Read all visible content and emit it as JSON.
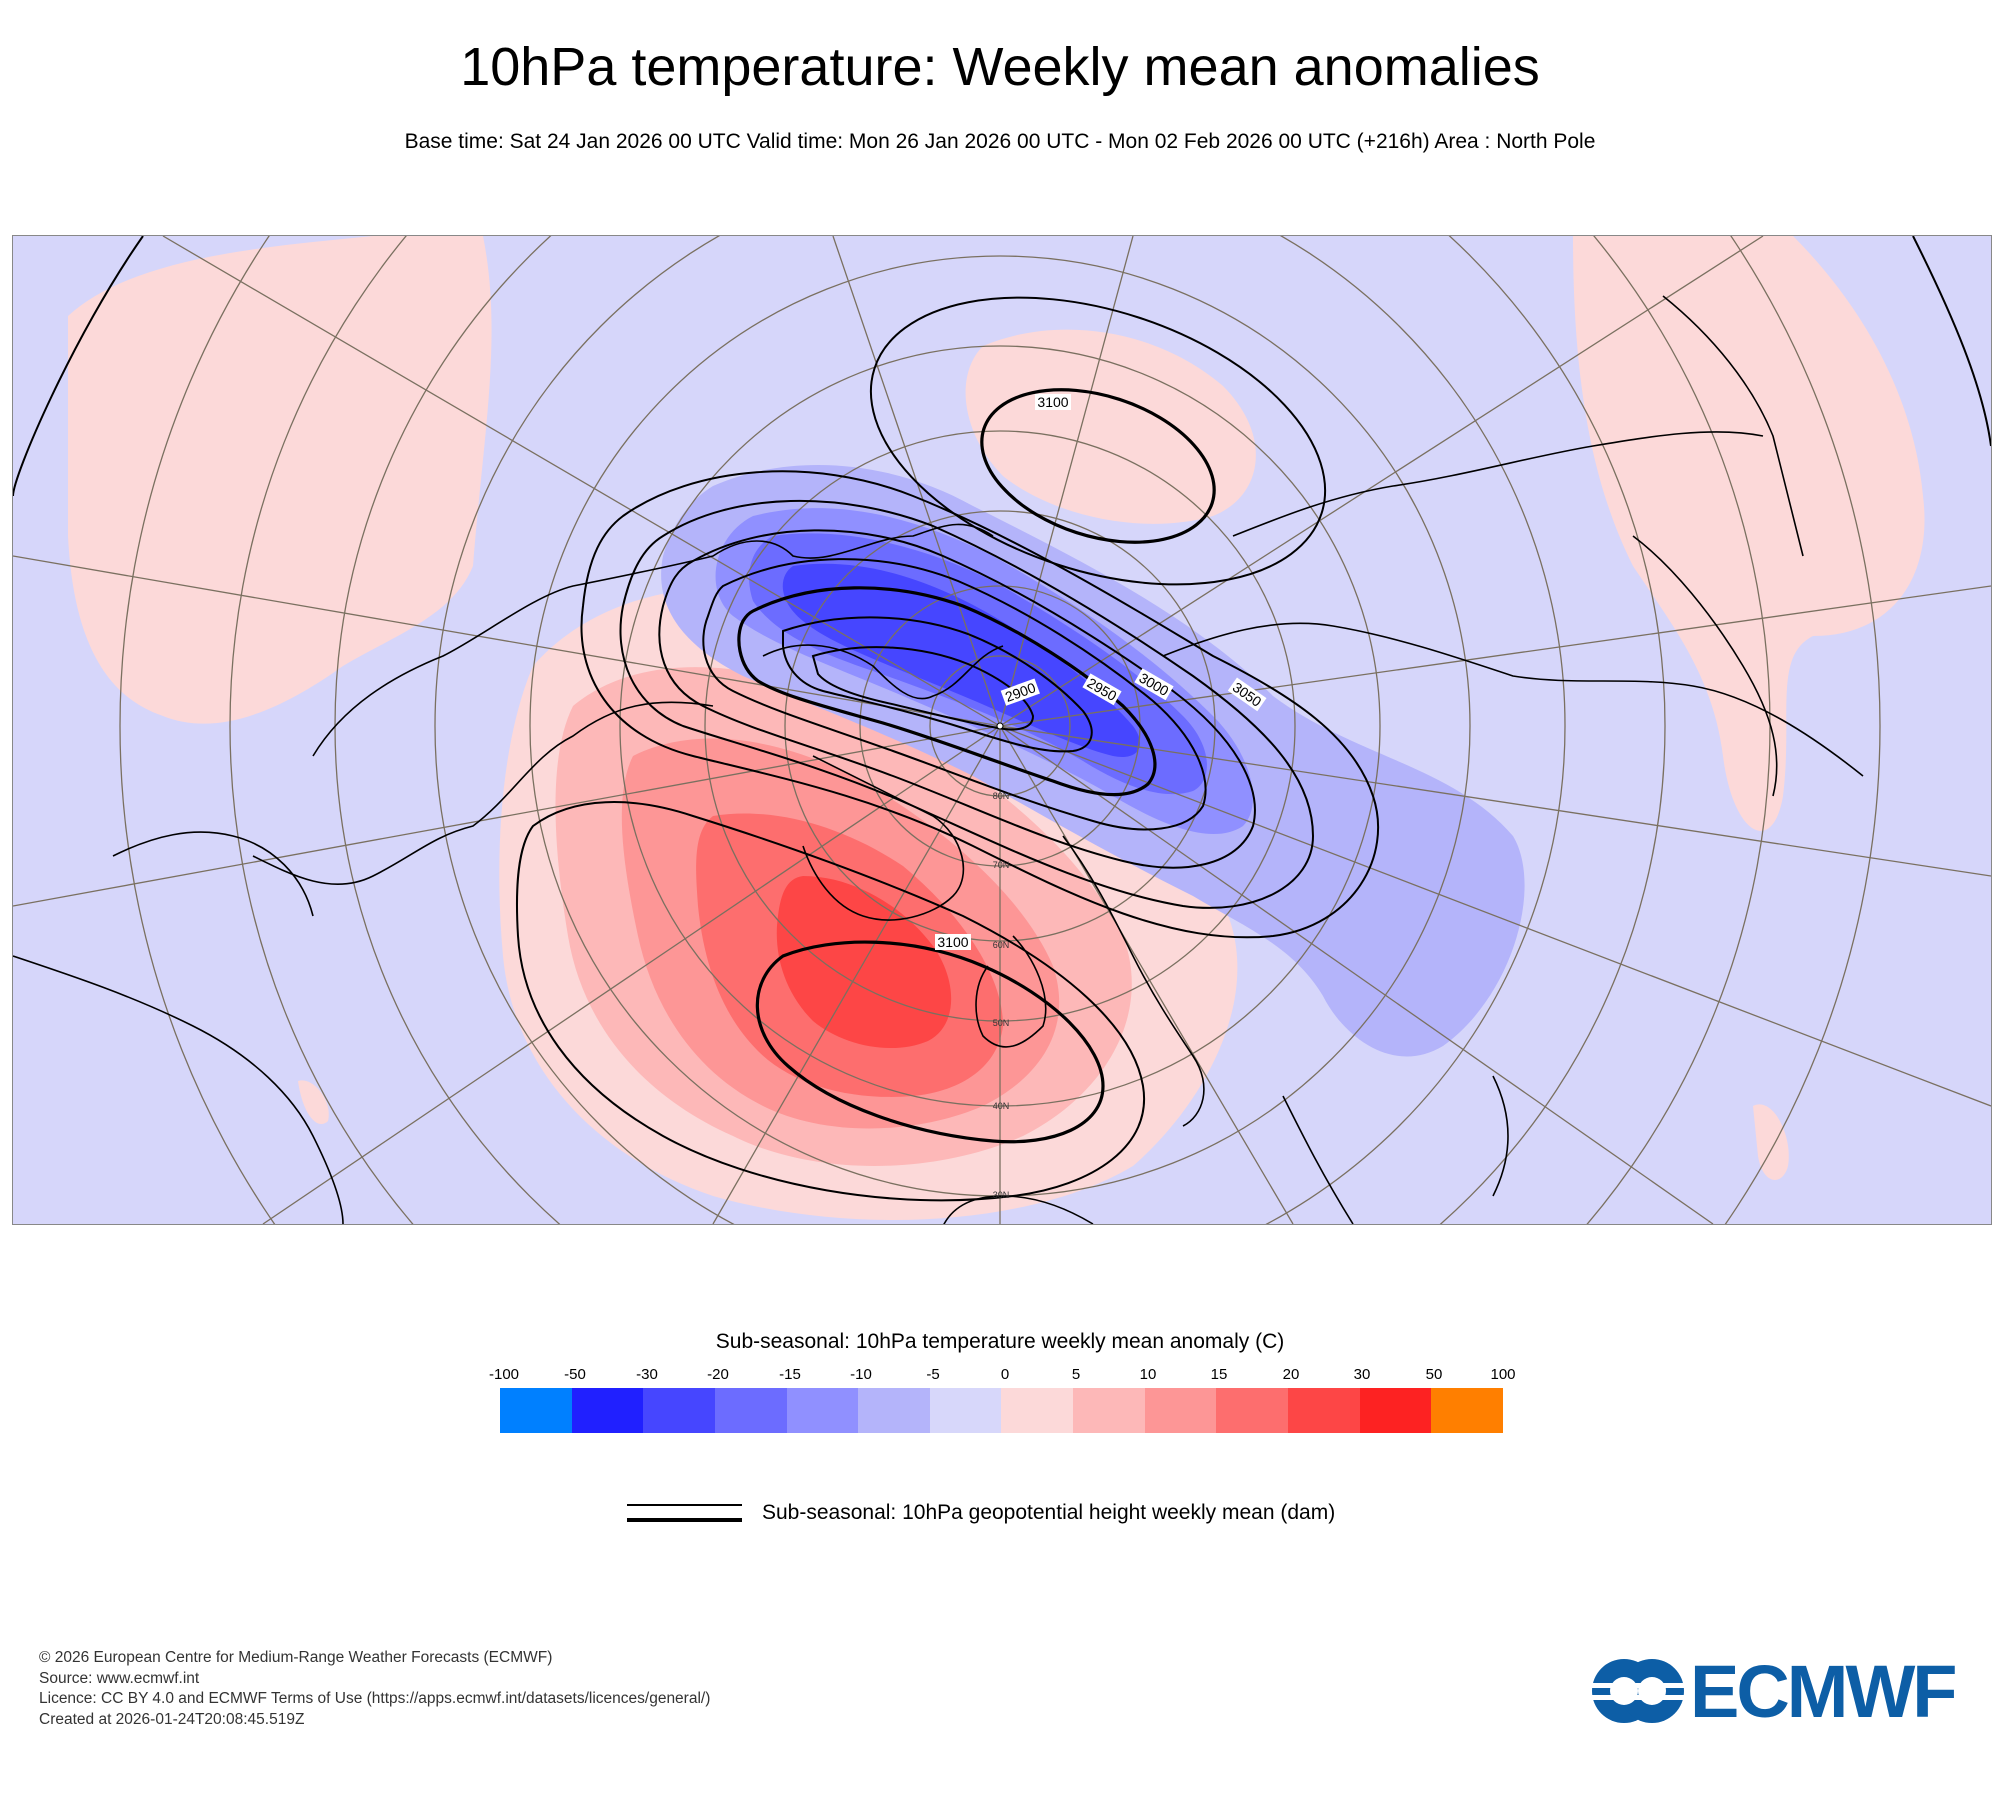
{
  "title": "10hPa temperature: Weekly mean anomalies",
  "subtitle": "Base time: Sat 24 Jan 2026 00 UTC Valid time: Mon 26 Jan 2026 00 UTC - Mon 02 Feb 2026 00 UTC (+216h) Area : North Pole",
  "map": {
    "projection": "polar stereographic",
    "area": "North Pole",
    "contour_labels": [
      "3100",
      "2900",
      "2950",
      "3000",
      "3050",
      "3100"
    ],
    "latitude_labels": [
      "80N",
      "70N",
      "60N",
      "50N",
      "40N",
      "30N"
    ],
    "colors": {
      "ocean_background": "#d6d6fa",
      "land_lines": "#000000",
      "grid_lines": "#7a7060"
    }
  },
  "colorbar": {
    "title": "Sub-seasonal: 10hPa temperature weekly mean anomaly (C)",
    "ticks": [
      "-100",
      "-50",
      "-30",
      "-20",
      "-15",
      "-10",
      "-5",
      "0",
      "5",
      "10",
      "15",
      "20",
      "30",
      "50",
      "100"
    ],
    "colors": [
      "#0080ff",
      "#2020ff",
      "#4646ff",
      "#6c6cff",
      "#9090ff",
      "#b4b4fa",
      "#d7d7fa",
      "#fcd9d9",
      "#fdb8b8",
      "#fd9696",
      "#fd6e6e",
      "#fd4646",
      "#fd2222",
      "#ff7f00"
    ]
  },
  "legend": {
    "label": "Sub-seasonal: 10hPa geopotential height weekly mean (dam)"
  },
  "footer": {
    "copyright": "© 2026 European Centre for Medium-Range Weather Forecasts (ECMWF)",
    "source": "Source: www.ecmwf.int",
    "licence": "Licence: CC BY 4.0 and ECMWF Terms of Use (https://apps.ecmwf.int/datasets/licences/general/)",
    "created": "Created at 2026-01-24T20:08:45.519Z"
  },
  "logo": {
    "text": "ECMWF",
    "color": "#0d5ea6"
  }
}
